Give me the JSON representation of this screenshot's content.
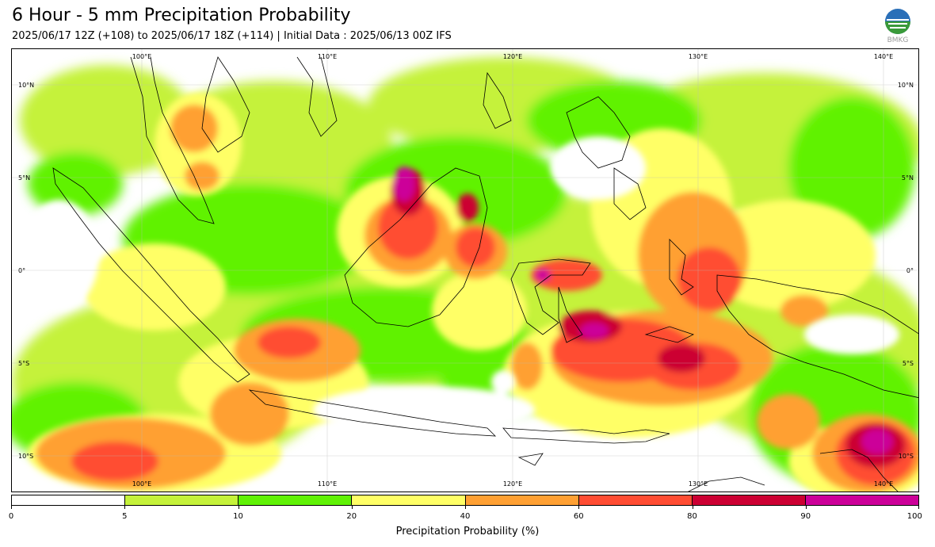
{
  "title": "6 Hour - 5 mm Precipitation Probability",
  "subtitle": "2025/06/17 12Z (+108) to 2025/06/17 18Z (+114) | Initial Data : 2025/06/13 00Z IFS",
  "logo": {
    "text": "BMKG",
    "icon": "bmkg-logo-icon"
  },
  "map": {
    "lon_labels_top": [
      "100°E",
      "110°E",
      "120°E",
      "130°E",
      "140°E"
    ],
    "lon_labels_bottom": [
      "100°E",
      "110°E",
      "120°E",
      "130°E",
      "140°E"
    ],
    "lat_labels_left": [
      "10°N",
      "5°N",
      "0°",
      "5°S",
      "10°S"
    ],
    "lat_labels_right": [
      "10°N",
      "5°N",
      "0°",
      "5°S",
      "10°S"
    ],
    "extent": {
      "lon_min": 93.7,
      "lon_max": 142.6,
      "lat_min": -11.8,
      "lat_max": 12.1
    }
  },
  "colorbar": {
    "ticks": [
      "0",
      "5",
      "10",
      "20",
      "40",
      "60",
      "80",
      "90",
      "100"
    ],
    "colors": [
      "#ffffff",
      "#c5f23a",
      "#60f205",
      "#ffff66",
      "#ffa033",
      "#ff4d33",
      "#cc0033",
      "#cc0099"
    ],
    "label": "Precipitation Probability (%)"
  }
}
